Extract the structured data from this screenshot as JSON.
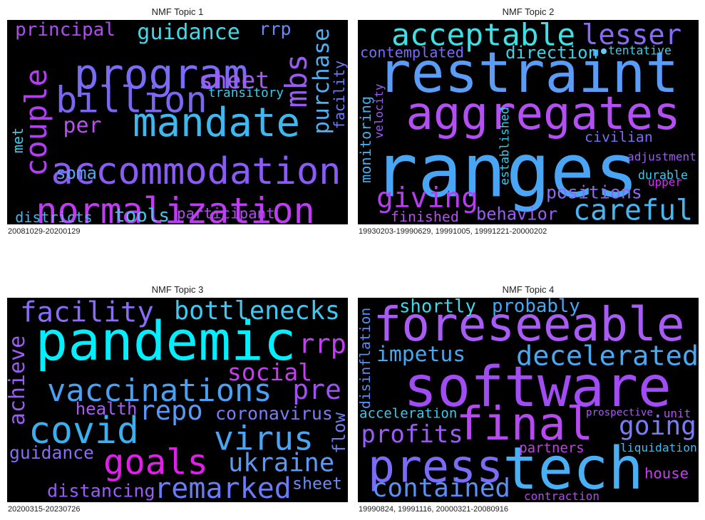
{
  "panels": [
    {
      "title": "NMF Topic 1",
      "dates": "20081029-20200129",
      "words": [
        {
          "text": "normalization",
          "color": "#c03cf2"
        },
        {
          "text": "accommodation",
          "color": "#8a5cf5"
        },
        {
          "text": "program",
          "color": "#7b6cf6"
        },
        {
          "text": "mandate",
          "color": "#3fb8f0"
        },
        {
          "text": "billion",
          "color": "#7a67f0"
        },
        {
          "text": "couple",
          "color": "#b33ff0"
        },
        {
          "text": "mbs",
          "color": "#9b59f5"
        },
        {
          "text": "purchase",
          "color": "#4fb0f2"
        },
        {
          "text": "guidance",
          "color": "#40d9e8"
        },
        {
          "text": "principal",
          "color": "#b04df0"
        },
        {
          "text": "sheet",
          "color": "#a35cf5"
        },
        {
          "text": "rrp",
          "color": "#6a8af5"
        },
        {
          "text": "facility",
          "color": "#6a7cf5"
        },
        {
          "text": "transitory",
          "color": "#40c8e8"
        },
        {
          "text": "per",
          "color": "#b84ff0"
        },
        {
          "text": "soma",
          "color": "#58a4f0"
        },
        {
          "text": "met",
          "color": "#40c8e8"
        },
        {
          "text": "districts",
          "color": "#40b8f0"
        },
        {
          "text": "tools",
          "color": "#40c8e8"
        },
        {
          "text": "participant",
          "color": "#b04df0"
        }
      ]
    },
    {
      "title": "NMF Topic 2",
      "dates": "19930203-19990629, 19991005, 19991221-20000202",
      "words": [
        {
          "text": "ranges",
          "color": "#4aa6f5"
        },
        {
          "text": "restraint",
          "color": "#5a9cf6"
        },
        {
          "text": "aggregates",
          "color": "#b34ff5"
        },
        {
          "text": "acceptable",
          "color": "#3ee0e5"
        },
        {
          "text": "lesser",
          "color": "#8a6af5"
        },
        {
          "text": "careful",
          "color": "#48b4f2"
        },
        {
          "text": "giving",
          "color": "#b53ff0"
        },
        {
          "text": "positions",
          "color": "#8a6af5"
        },
        {
          "text": "behavior",
          "color": "#9b5cf5"
        },
        {
          "text": "direction",
          "color": "#3fd0e8"
        },
        {
          "text": "contemplated",
          "color": "#7a6cf6"
        },
        {
          "text": "tentative",
          "color": "#40c8e8"
        },
        {
          "text": "civilian",
          "color": "#7a6cf6"
        },
        {
          "text": "adjustment",
          "color": "#9b5cf5"
        },
        {
          "text": "durable",
          "color": "#40c8e8"
        },
        {
          "text": "upper",
          "color": "#d030f0"
        },
        {
          "text": "monitoring",
          "color": "#40b0f0"
        },
        {
          "text": "velocity",
          "color": "#9b5cf5"
        },
        {
          "text": "established",
          "color": "#40c8e8"
        },
        {
          "text": "finished",
          "color": "#b44ff0"
        }
      ]
    },
    {
      "title": "NMF Topic 3",
      "dates": "20200315-20230726",
      "words": [
        {
          "text": "pandemic",
          "color": "#00f0ff"
        },
        {
          "text": "covid",
          "color": "#3ab0f2"
        },
        {
          "text": "vaccinations",
          "color": "#4aa0f2"
        },
        {
          "text": "virus",
          "color": "#4aa6f5"
        },
        {
          "text": "goals",
          "color": "#e020e8"
        },
        {
          "text": "facility",
          "color": "#8a6cf6"
        },
        {
          "text": "bottlenecks",
          "color": "#40c8f0"
        },
        {
          "text": "remarked",
          "color": "#6a7cf5"
        },
        {
          "text": "ukraine",
          "color": "#5c98f5"
        },
        {
          "text": "repo",
          "color": "#5a98f5"
        },
        {
          "text": "social",
          "color": "#c43ff0"
        },
        {
          "text": "pre",
          "color": "#a050f5"
        },
        {
          "text": "rrp",
          "color": "#c03ff0"
        },
        {
          "text": "achieve",
          "color": "#9a5cf5"
        },
        {
          "text": "health",
          "color": "#a85cf5"
        },
        {
          "text": "coronavirus",
          "color": "#7a7cf6"
        },
        {
          "text": "guidance",
          "color": "#8a6cf6"
        },
        {
          "text": "distancing",
          "color": "#9b5cf5"
        },
        {
          "text": "sheet",
          "color": "#6a8af5"
        },
        {
          "text": "flow",
          "color": "#6a7cf5"
        }
      ]
    },
    {
      "title": "NMF Topic 4",
      "dates": "19990824, 19991116, 20000321-20080916",
      "words": [
        {
          "text": "software",
          "color": "#a14cf5"
        },
        {
          "text": "foreseeable",
          "color": "#a85cf5"
        },
        {
          "text": "tech",
          "color": "#4ab0f5"
        },
        {
          "text": "press",
          "color": "#7a6cf6"
        },
        {
          "text": "final",
          "color": "#b64af0"
        },
        {
          "text": "decelerated",
          "color": "#48a8f2"
        },
        {
          "text": "impetus",
          "color": "#46a8f2"
        },
        {
          "text": "profits",
          "color": "#9b5cf5"
        },
        {
          "text": "going",
          "color": "#7a7cf6"
        },
        {
          "text": "contained",
          "color": "#5a90f5"
        },
        {
          "text": "shortly",
          "color": "#40d8e8"
        },
        {
          "text": "probably",
          "color": "#46a8f2"
        },
        {
          "text": "disinflation",
          "color": "#5a90f5"
        },
        {
          "text": "acceleration",
          "color": "#40c8e8"
        },
        {
          "text": "prospective",
          "color": "#a85cf5"
        },
        {
          "text": "unit",
          "color": "#b44ff0"
        },
        {
          "text": "liquidation",
          "color": "#40b8f0"
        },
        {
          "text": "partners",
          "color": "#c43ff0"
        },
        {
          "text": "house",
          "color": "#c43ff0"
        },
        {
          "text": "contraction",
          "color": "#b04df0"
        }
      ]
    }
  ]
}
